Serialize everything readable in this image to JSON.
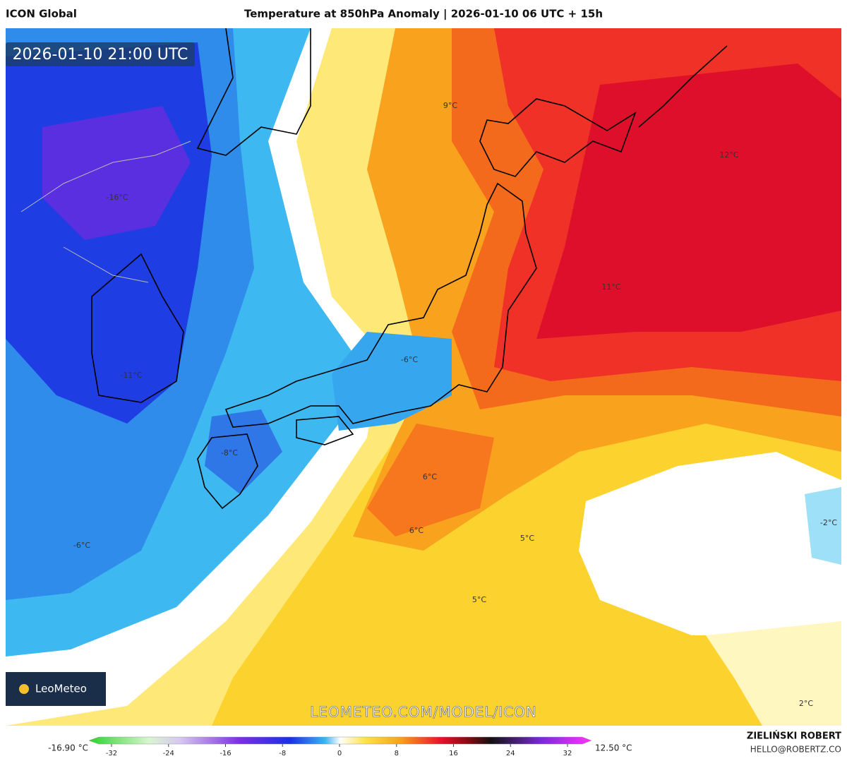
{
  "header": {
    "source": "ICON Global",
    "title": "Temperature at 850hPa Anomaly | 2026-01-10 06 UTC + 15h"
  },
  "map": {
    "timestamp": "2026-01-10 21:00 UTC",
    "watermark": "LEOMETEO.COM/MODEL/ICON",
    "logo": "LeoMeteo",
    "labels": [
      "9°C",
      "12°C",
      "-16°C",
      "11°C",
      "-6°C",
      "-11°C",
      "-8°C",
      "6°C",
      "6°C",
      "5°C",
      "-2°C",
      "-6°C",
      "5°C",
      "2°C"
    ]
  },
  "colorbar": {
    "min_label": "-16.90 °C",
    "max_label": "12.50 °C",
    "ticks": [
      -32,
      -24,
      -16,
      -8,
      0,
      8,
      16,
      24,
      32
    ]
  },
  "footer": {
    "author": "ZIELIŃSKI ROBERT",
    "email": "HELLO@ROBERTZ.CO"
  }
}
